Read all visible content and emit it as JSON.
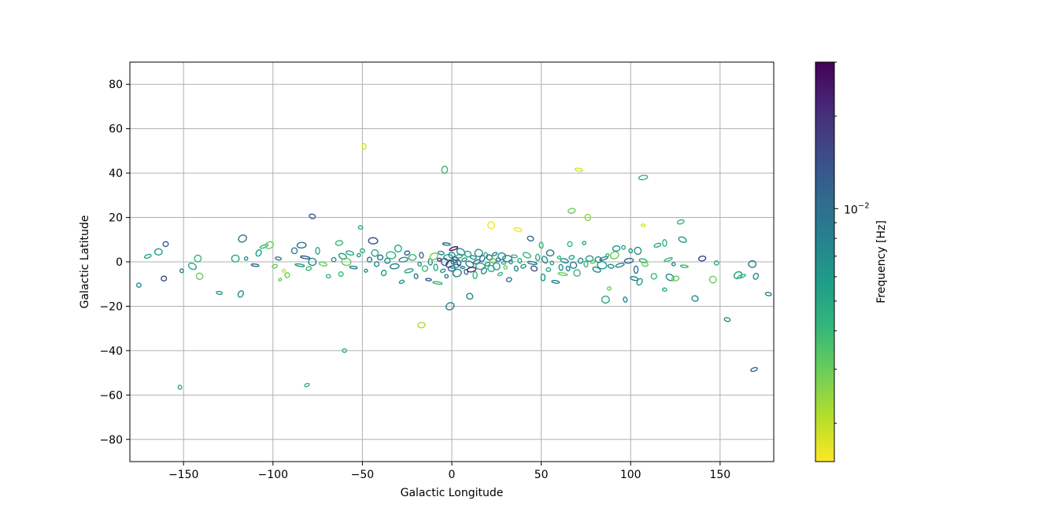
{
  "chart_data": {
    "type": "scatter",
    "marker": "ellipse-outline",
    "xlabel": "Galactic Longitude",
    "ylabel": "Galactic Latitude",
    "xlim": [
      -180,
      180
    ],
    "ylim": [
      -90,
      90
    ],
    "xticks": [
      -150,
      -100,
      -50,
      0,
      50,
      100,
      150
    ],
    "yticks": [
      -80,
      -60,
      -40,
      -20,
      0,
      20,
      40,
      60,
      80
    ],
    "grid": true,
    "colorbar": {
      "label": "Frequency [Hz]",
      "scale": "log",
      "colormap": "viridis",
      "range": [
        0.0015,
        0.03
      ],
      "major_tick_label": "10",
      "major_tick_exponent": "−2",
      "major_tick_value": 0.01,
      "minor_ticks": [
        0.002,
        0.003,
        0.004,
        0.005,
        0.006,
        0.007,
        0.008,
        0.009,
        0.02,
        0.03
      ],
      "stops": [
        "#fde725",
        "#b5de2b",
        "#6ece58",
        "#35b779",
        "#1f9e89",
        "#26828e",
        "#31688e",
        "#3e4989",
        "#482878",
        "#440154"
      ]
    },
    "points": [
      {
        "x": -49,
        "y": 52,
        "f": 0.0018
      },
      {
        "x": -4,
        "y": 41.5,
        "f": 0.004
      },
      {
        "x": 71,
        "y": 41.5,
        "f": 0.0018
      },
      {
        "x": 107,
        "y": 38,
        "f": 0.004
      },
      {
        "x": -78,
        "y": 20.5,
        "f": 0.012
      },
      {
        "x": 67,
        "y": 23,
        "f": 0.003
      },
      {
        "x": 76,
        "y": 20,
        "f": 0.0025
      },
      {
        "x": 22,
        "y": 16.5,
        "f": 0.0016
      },
      {
        "x": 37,
        "y": 14.5,
        "f": 0.0016
      },
      {
        "x": 107,
        "y": 16.5,
        "f": 0.0018
      },
      {
        "x": 128,
        "y": 18,
        "f": 0.004
      },
      {
        "x": -51,
        "y": 15.5,
        "f": 0.005
      },
      {
        "x": -117,
        "y": 10.5,
        "f": 0.009
      },
      {
        "x": -160,
        "y": 8,
        "f": 0.012
      },
      {
        "x": -170,
        "y": 2.5,
        "f": 0.005
      },
      {
        "x": -164,
        "y": 4.5,
        "f": 0.006
      },
      {
        "x": -142,
        "y": 1.5,
        "f": 0.004
      },
      {
        "x": -130,
        "y": -14,
        "f": 0.006
      },
      {
        "x": -118,
        "y": -14.5,
        "f": 0.007
      },
      {
        "x": -175,
        "y": -10.5,
        "f": 0.007
      },
      {
        "x": -161,
        "y": -7.5,
        "f": 0.015
      },
      {
        "x": -151,
        "y": -4,
        "f": 0.008
      },
      {
        "x": -141,
        "y": -6.5,
        "f": 0.003
      },
      {
        "x": -145,
        "y": -2,
        "f": 0.005
      },
      {
        "x": -121,
        "y": 1.5,
        "f": 0.005
      },
      {
        "x": -115,
        "y": 1.5,
        "f": 0.007
      },
      {
        "x": -110,
        "y": -1.5,
        "f": 0.01
      },
      {
        "x": -108,
        "y": 4,
        "f": 0.006
      },
      {
        "x": -105,
        "y": 7,
        "f": 0.004
      },
      {
        "x": -102,
        "y": 7.5,
        "f": 0.003
      },
      {
        "x": -97,
        "y": 1.5,
        "f": 0.009
      },
      {
        "x": -99,
        "y": -2,
        "f": 0.003
      },
      {
        "x": -96,
        "y": -8,
        "f": 0.003
      },
      {
        "x": -94,
        "y": -4,
        "f": 0.002
      },
      {
        "x": -92,
        "y": -6,
        "f": 0.003
      },
      {
        "x": -88,
        "y": 5,
        "f": 0.008
      },
      {
        "x": -84,
        "y": 7.5,
        "f": 0.009
      },
      {
        "x": -82,
        "y": 2,
        "f": 0.012
      },
      {
        "x": -85,
        "y": -1.5,
        "f": 0.006
      },
      {
        "x": -80,
        "y": -3,
        "f": 0.004
      },
      {
        "x": -78,
        "y": 0,
        "f": 0.007
      },
      {
        "x": -75,
        "y": 5,
        "f": 0.005
      },
      {
        "x": -72,
        "y": -1,
        "f": 0.003
      },
      {
        "x": -69,
        "y": -6.5,
        "f": 0.004
      },
      {
        "x": -66,
        "y": 1,
        "f": 0.007
      },
      {
        "x": -63,
        "y": 8.5,
        "f": 0.004
      },
      {
        "x": -62,
        "y": -5.5,
        "f": 0.004
      },
      {
        "x": -61,
        "y": 2.5,
        "f": 0.006
      },
      {
        "x": -59,
        "y": 0,
        "f": 0.003
      },
      {
        "x": -57,
        "y": 4,
        "f": 0.005
      },
      {
        "x": -55,
        "y": -2.5,
        "f": 0.008
      },
      {
        "x": -52,
        "y": 3,
        "f": 0.006
      },
      {
        "x": -50,
        "y": 5,
        "f": 0.005
      },
      {
        "x": -48,
        "y": -4,
        "f": 0.007
      },
      {
        "x": -46,
        "y": 1,
        "f": 0.009
      },
      {
        "x": -44,
        "y": 9.5,
        "f": 0.014
      },
      {
        "x": -43,
        "y": 4,
        "f": 0.005
      },
      {
        "x": -42,
        "y": -1,
        "f": 0.008
      },
      {
        "x": -40,
        "y": 2,
        "f": 0.011
      },
      {
        "x": -38,
        "y": -5,
        "f": 0.006
      },
      {
        "x": -36,
        "y": 0.5,
        "f": 0.007
      },
      {
        "x": -34,
        "y": 3,
        "f": 0.004
      },
      {
        "x": -32,
        "y": -2,
        "f": 0.009
      },
      {
        "x": -30,
        "y": 6,
        "f": 0.005
      },
      {
        "x": -28,
        "y": -9,
        "f": 0.006
      },
      {
        "x": -27,
        "y": 1,
        "f": 0.007
      },
      {
        "x": -25,
        "y": 4,
        "f": 0.012
      },
      {
        "x": -24,
        "y": -4,
        "f": 0.005
      },
      {
        "x": -22,
        "y": 2,
        "f": 0.004
      },
      {
        "x": -20,
        "y": -6.5,
        "f": 0.008
      },
      {
        "x": -18,
        "y": -1,
        "f": 0.006
      },
      {
        "x": -17,
        "y": 3,
        "f": 0.01
      },
      {
        "x": -15,
        "y": -3,
        "f": 0.004
      },
      {
        "x": -13,
        "y": -8,
        "f": 0.013
      },
      {
        "x": -12,
        "y": 0,
        "f": 0.007
      },
      {
        "x": -10,
        "y": 2.5,
        "f": 0.003
      },
      {
        "x": -9,
        "y": -2.5,
        "f": 0.005
      },
      {
        "x": -8,
        "y": -9.5,
        "f": 0.004
      },
      {
        "x": -7,
        "y": 1,
        "f": 0.02
      },
      {
        "x": -6,
        "y": 4,
        "f": 0.008
      },
      {
        "x": -5,
        "y": -4,
        "f": 0.006
      },
      {
        "x": -4,
        "y": 0,
        "f": 0.012
      },
      {
        "x": -3,
        "y": 8,
        "f": 0.01
      },
      {
        "x": -3,
        "y": -6.5,
        "f": 0.009
      },
      {
        "x": -2,
        "y": 2,
        "f": 0.006
      },
      {
        "x": -1,
        "y": -1,
        "f": 0.018
      },
      {
        "x": 0,
        "y": 3,
        "f": 0.007
      },
      {
        "x": 0,
        "y": -3,
        "f": 0.011
      },
      {
        "x": 1,
        "y": 6,
        "f": 0.025
      },
      {
        "x": 1,
        "y": 0,
        "f": 0.009
      },
      {
        "x": 2,
        "y": -2,
        "f": 0.006
      },
      {
        "x": 2,
        "y": 1.5,
        "f": 0.015
      },
      {
        "x": 3,
        "y": -5,
        "f": 0.008
      },
      {
        "x": 4,
        "y": 2.5,
        "f": 0.005
      },
      {
        "x": 4,
        "y": -0.5,
        "f": 0.013
      },
      {
        "x": 5,
        "y": 4.5,
        "f": 0.007
      },
      {
        "x": 6,
        "y": -2.5,
        "f": 0.009
      },
      {
        "x": 7,
        "y": 1,
        "f": 0.006
      },
      {
        "x": 8,
        "y": -4.5,
        "f": 0.011
      },
      {
        "x": 9,
        "y": 3.5,
        "f": 0.005
      },
      {
        "x": 10,
        "y": -1,
        "f": 0.008
      },
      {
        "x": 11,
        "y": -3.5,
        "f": 0.022
      },
      {
        "x": 12,
        "y": 2,
        "f": 0.007
      },
      {
        "x": 13,
        "y": -6,
        "f": 0.004
      },
      {
        "x": 14,
        "y": 0,
        "f": 0.009
      },
      {
        "x": 15,
        "y": 4,
        "f": 0.006
      },
      {
        "x": 16,
        "y": -2,
        "f": 0.005
      },
      {
        "x": 17,
        "y": 1.5,
        "f": 0.012
      },
      {
        "x": 18,
        "y": -4,
        "f": 0.007
      },
      {
        "x": 19,
        "y": 3,
        "f": 0.004
      },
      {
        "x": 20,
        "y": -1,
        "f": 0.006
      },
      {
        "x": 21,
        "y": 2,
        "f": 0.009
      },
      {
        "x": 22,
        "y": -3,
        "f": 0.005
      },
      {
        "x": 23,
        "y": 0.5,
        "f": 0.003
      },
      {
        "x": 24,
        "y": 3.5,
        "f": 0.008
      },
      {
        "x": 25,
        "y": -2,
        "f": 0.006
      },
      {
        "x": 26,
        "y": 1,
        "f": 0.01
      },
      {
        "x": 27,
        "y": -5.5,
        "f": 0.004
      },
      {
        "x": 28,
        "y": 2.5,
        "f": 0.007
      },
      {
        "x": 29,
        "y": -0.5,
        "f": 0.005
      },
      {
        "x": 30,
        "y": -2.5,
        "f": 0.003
      },
      {
        "x": 31,
        "y": 1.5,
        "f": 0.008
      },
      {
        "x": 32,
        "y": -8,
        "f": 0.009
      },
      {
        "x": 33,
        "y": 0,
        "f": 0.006
      },
      {
        "x": 35,
        "y": 2.5,
        "f": 0.004
      },
      {
        "x": 36,
        "y": -3,
        "f": 0.007
      },
      {
        "x": 38,
        "y": 0.5,
        "f": 0.005
      },
      {
        "x": 40,
        "y": -2,
        "f": 0.006
      },
      {
        "x": 42,
        "y": 3,
        "f": 0.004
      },
      {
        "x": 44,
        "y": 10.5,
        "f": 0.011
      },
      {
        "x": 45,
        "y": -0.5,
        "f": 0.008
      },
      {
        "x": 46,
        "y": -3,
        "f": 0.014
      },
      {
        "x": 48,
        "y": 2,
        "f": 0.005
      },
      {
        "x": 50,
        "y": 7.5,
        "f": 0.004
      },
      {
        "x": 51,
        "y": -7,
        "f": 0.006
      },
      {
        "x": 52,
        "y": 1,
        "f": 0.007
      },
      {
        "x": 54,
        "y": -3.5,
        "f": 0.005
      },
      {
        "x": 55,
        "y": 4,
        "f": 0.009
      },
      {
        "x": 56,
        "y": -0.5,
        "f": 0.006
      },
      {
        "x": 58,
        "y": -9,
        "f": 0.008
      },
      {
        "x": 60,
        "y": 2,
        "f": 0.004
      },
      {
        "x": 61,
        "y": -2.5,
        "f": 0.006
      },
      {
        "x": 62,
        "y": -5.5,
        "f": 0.003
      },
      {
        "x": 63,
        "y": 0.5,
        "f": 0.007
      },
      {
        "x": 65,
        "y": -3,
        "f": 0.008
      },
      {
        "x": 66,
        "y": 8,
        "f": 0.004
      },
      {
        "x": 67,
        "y": 2,
        "f": 0.005
      },
      {
        "x": 68,
        "y": -1.5,
        "f": 0.009
      },
      {
        "x": 70,
        "y": -5,
        "f": 0.004
      },
      {
        "x": 72,
        "y": 0.5,
        "f": 0.007
      },
      {
        "x": 74,
        "y": 8.5,
        "f": 0.005
      },
      {
        "x": 75,
        "y": -1,
        "f": 0.004
      },
      {
        "x": 77,
        "y": 1.5,
        "f": 0.006
      },
      {
        "x": 79,
        "y": 0,
        "f": 0.003
      },
      {
        "x": 81,
        "y": -3.5,
        "f": 0.008
      },
      {
        "x": 82,
        "y": 1,
        "f": 0.007
      },
      {
        "x": 84,
        "y": -1.5,
        "f": 0.006
      },
      {
        "x": 85,
        "y": 1.5,
        "f": 0.009
      },
      {
        "x": 86,
        "y": -17,
        "f": 0.005
      },
      {
        "x": 87,
        "y": 3,
        "f": 0.004
      },
      {
        "x": 88,
        "y": -12,
        "f": 0.003
      },
      {
        "x": 89,
        "y": -2,
        "f": 0.007
      },
      {
        "x": 91,
        "y": 3,
        "f": 0.003
      },
      {
        "x": 92,
        "y": 6,
        "f": 0.006
      },
      {
        "x": 94,
        "y": -1.5,
        "f": 0.008
      },
      {
        "x": 96,
        "y": 6.5,
        "f": 0.005
      },
      {
        "x": 97,
        "y": -17,
        "f": 0.007
      },
      {
        "x": 99,
        "y": 0.5,
        "f": 0.011
      },
      {
        "x": 100,
        "y": 5,
        "f": 0.006
      },
      {
        "x": 102,
        "y": -7.5,
        "f": 0.008
      },
      {
        "x": 103,
        "y": -3.5,
        "f": 0.009
      },
      {
        "x": 104,
        "y": 5,
        "f": 0.007
      },
      {
        "x": 105,
        "y": -9,
        "f": 0.006
      },
      {
        "x": 107,
        "y": 0.5,
        "f": 0.005
      },
      {
        "x": 108,
        "y": -1,
        "f": 0.003
      },
      {
        "x": 113,
        "y": -6.5,
        "f": 0.004
      },
      {
        "x": 115,
        "y": 7.5,
        "f": 0.005
      },
      {
        "x": 119,
        "y": 8.5,
        "f": 0.004
      },
      {
        "x": 119,
        "y": -12.5,
        "f": 0.005
      },
      {
        "x": 121,
        "y": 1,
        "f": 0.004
      },
      {
        "x": 122,
        "y": -7,
        "f": 0.007
      },
      {
        "x": 124,
        "y": -1,
        "f": 0.008
      },
      {
        "x": 125,
        "y": -7.5,
        "f": 0.003
      },
      {
        "x": 129,
        "y": 10,
        "f": 0.006
      },
      {
        "x": 130,
        "y": -2,
        "f": 0.004
      },
      {
        "x": 136,
        "y": -16.5,
        "f": 0.007
      },
      {
        "x": 140,
        "y": 1.5,
        "f": 0.016
      },
      {
        "x": 146,
        "y": -8,
        "f": 0.003
      },
      {
        "x": 148,
        "y": -0.5,
        "f": 0.005
      },
      {
        "x": 154,
        "y": -26,
        "f": 0.007
      },
      {
        "x": 160,
        "y": -6,
        "f": 0.006
      },
      {
        "x": 162,
        "y": -6.5,
        "f": 0.004
      },
      {
        "x": 168,
        "y": -1,
        "f": 0.009
      },
      {
        "x": 170,
        "y": -6.5,
        "f": 0.007
      },
      {
        "x": 169,
        "y": -48.5,
        "f": 0.01
      },
      {
        "x": 177,
        "y": -14.5,
        "f": 0.008
      },
      {
        "x": -17,
        "y": -28.5,
        "f": 0.0022
      },
      {
        "x": -1,
        "y": -20,
        "f": 0.008
      },
      {
        "x": 10,
        "y": -15.5,
        "f": 0.007
      },
      {
        "x": -60,
        "y": -40,
        "f": 0.004
      },
      {
        "x": -81,
        "y": -55.5,
        "f": 0.004
      },
      {
        "x": -152,
        "y": -56.5,
        "f": 0.0045
      }
    ]
  }
}
